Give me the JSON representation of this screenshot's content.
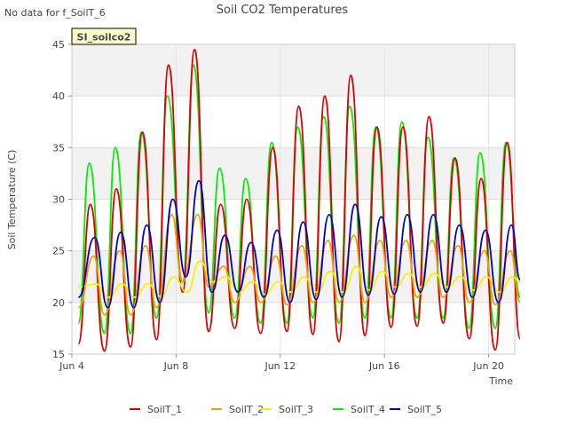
{
  "no_data_note": "No data for f_SoilT_6",
  "badge": {
    "label": "SI_soilco2",
    "bg": "#ffffcc",
    "fg": "#8b0000"
  },
  "chart_data": {
    "type": "line",
    "title": "Soil CO2 Temperatures",
    "xlabel": "Time",
    "ylabel": "Soil Temperature (C)",
    "xlim": [
      "2024-06-04",
      "2024-06-21"
    ],
    "ylim": [
      15,
      45
    ],
    "yticks": [
      15,
      20,
      25,
      30,
      35,
      40,
      45
    ],
    "xticks": [
      "2024-06-04",
      "2024-06-08",
      "2024-06-12",
      "2024-06-16",
      "2024-06-20"
    ],
    "xtick_labels": [
      "Jun 4",
      "Jun 8",
      "Jun 12",
      "Jun 16",
      "Jun 20"
    ],
    "grid": true,
    "banding": "alternating grey horizontal bands",
    "legend_position": "bottom",
    "series": [
      {
        "name": "SoilT_1",
        "color": "#dd0000",
        "x": [
          "2024-06-04 06:00",
          "2024-06-04 17:00",
          "2024-06-05 06:00",
          "2024-06-05 17:00",
          "2024-06-06 06:00",
          "2024-06-06 17:00",
          "2024-06-07 06:00",
          "2024-06-07 17:00",
          "2024-06-08 06:00",
          "2024-06-08 17:00",
          "2024-06-09 06:00",
          "2024-06-09 17:00",
          "2024-06-10 06:00",
          "2024-06-10 17:00",
          "2024-06-11 06:00",
          "2024-06-11 17:00",
          "2024-06-12 06:00",
          "2024-06-12 17:00",
          "2024-06-13 06:00",
          "2024-06-13 17:00",
          "2024-06-14 06:00",
          "2024-06-14 17:00",
          "2024-06-15 06:00",
          "2024-06-15 17:00",
          "2024-06-16 06:00",
          "2024-06-16 17:00",
          "2024-06-17 06:00",
          "2024-06-17 17:00",
          "2024-06-18 06:00",
          "2024-06-18 17:00",
          "2024-06-19 06:00",
          "2024-06-19 17:00",
          "2024-06-20 06:00",
          "2024-06-20 17:00",
          "2024-06-21 05:00"
        ],
        "y": [
          16.0,
          29.5,
          15.3,
          31.0,
          15.7,
          36.5,
          16.4,
          43.0,
          21.0,
          44.5,
          17.2,
          29.5,
          17.5,
          30.0,
          17.0,
          35.0,
          17.2,
          39.0,
          16.9,
          40.0,
          16.2,
          42.0,
          16.8,
          37.0,
          17.6,
          37.0,
          17.7,
          38.0,
          18.0,
          34.0,
          16.5,
          32.0,
          15.4,
          35.5,
          16.5
        ]
      },
      {
        "name": "SoilT_2",
        "color": "#f0a000",
        "x": [
          "2024-06-04 06:00",
          "2024-06-04 20:00",
          "2024-06-05 06:00",
          "2024-06-05 20:00",
          "2024-06-06 06:00",
          "2024-06-06 20:00",
          "2024-06-07 06:00",
          "2024-06-07 20:00",
          "2024-06-08 06:00",
          "2024-06-08 20:00",
          "2024-06-09 06:00",
          "2024-06-09 20:00",
          "2024-06-10 06:00",
          "2024-06-10 20:00",
          "2024-06-11 06:00",
          "2024-06-11 20:00",
          "2024-06-12 06:00",
          "2024-06-12 20:00",
          "2024-06-13 06:00",
          "2024-06-13 20:00",
          "2024-06-14 06:00",
          "2024-06-14 20:00",
          "2024-06-15 06:00",
          "2024-06-15 20:00",
          "2024-06-16 06:00",
          "2024-06-16 20:00",
          "2024-06-17 06:00",
          "2024-06-17 20:00",
          "2024-06-18 06:00",
          "2024-06-18 20:00",
          "2024-06-19 06:00",
          "2024-06-19 20:00",
          "2024-06-20 06:00",
          "2024-06-20 20:00",
          "2024-06-21 05:00"
        ],
        "y": [
          19.5,
          24.5,
          18.8,
          25.0,
          18.8,
          25.5,
          19.5,
          28.5,
          22.0,
          28.5,
          21.5,
          23.5,
          20.0,
          23.5,
          20.0,
          24.5,
          19.8,
          25.5,
          20.0,
          26.0,
          20.0,
          26.5,
          20.0,
          26.0,
          20.5,
          26.0,
          20.5,
          26.0,
          20.5,
          25.5,
          20.0,
          25.0,
          19.8,
          25.0,
          20.0
        ]
      },
      {
        "name": "SoilT_3",
        "color": "#ffee00",
        "x": [
          "2024-06-04 06:00",
          "2024-06-04 22:00",
          "2024-06-05 10:00",
          "2024-06-05 22:00",
          "2024-06-06 10:00",
          "2024-06-06 22:00",
          "2024-06-07 10:00",
          "2024-06-07 22:00",
          "2024-06-08 10:00",
          "2024-06-08 22:00",
          "2024-06-09 10:00",
          "2024-06-09 22:00",
          "2024-06-10 10:00",
          "2024-06-10 22:00",
          "2024-06-11 10:00",
          "2024-06-11 22:00",
          "2024-06-12 10:00",
          "2024-06-12 22:00",
          "2024-06-13 10:00",
          "2024-06-13 22:00",
          "2024-06-14 10:00",
          "2024-06-14 22:00",
          "2024-06-15 10:00",
          "2024-06-15 22:00",
          "2024-06-16 10:00",
          "2024-06-16 22:00",
          "2024-06-17 10:00",
          "2024-06-17 22:00",
          "2024-06-18 10:00",
          "2024-06-18 22:00",
          "2024-06-19 10:00",
          "2024-06-19 22:00",
          "2024-06-20 10:00",
          "2024-06-20 22:00",
          "2024-06-21 05:00"
        ],
        "y": [
          21.5,
          21.8,
          20.5,
          21.8,
          20.5,
          21.8,
          20.6,
          22.5,
          21.0,
          24.0,
          22.0,
          22.5,
          21.0,
          22.0,
          20.8,
          22.0,
          21.0,
          22.5,
          21.0,
          23.0,
          21.0,
          23.5,
          21.2,
          23.0,
          21.5,
          22.8,
          21.5,
          22.8,
          21.5,
          22.5,
          21.2,
          22.5,
          21.0,
          22.5,
          22.0
        ]
      },
      {
        "name": "SoilT_4",
        "color": "#00ee00",
        "x": [
          "2024-06-04 06:00",
          "2024-06-04 16:00",
          "2024-06-05 06:00",
          "2024-06-05 16:00",
          "2024-06-06 06:00",
          "2024-06-06 16:00",
          "2024-06-07 06:00",
          "2024-06-07 16:00",
          "2024-06-08 06:00",
          "2024-06-08 16:00",
          "2024-06-09 06:00",
          "2024-06-09 16:00",
          "2024-06-10 06:00",
          "2024-06-10 16:00",
          "2024-06-11 06:00",
          "2024-06-11 16:00",
          "2024-06-12 06:00",
          "2024-06-12 16:00",
          "2024-06-13 06:00",
          "2024-06-13 16:00",
          "2024-06-14 06:00",
          "2024-06-14 16:00",
          "2024-06-15 06:00",
          "2024-06-15 16:00",
          "2024-06-16 06:00",
          "2024-06-16 16:00",
          "2024-06-17 06:00",
          "2024-06-17 16:00",
          "2024-06-18 06:00",
          "2024-06-18 16:00",
          "2024-06-19 06:00",
          "2024-06-19 16:00",
          "2024-06-20 06:00",
          "2024-06-20 16:00",
          "2024-06-21 05:00"
        ],
        "y": [
          18.0,
          33.5,
          17.0,
          35.0,
          17.0,
          36.5,
          18.5,
          40.0,
          22.0,
          43.0,
          19.0,
          33.0,
          18.5,
          32.0,
          18.0,
          35.5,
          18.0,
          37.0,
          18.5,
          38.0,
          18.0,
          39.0,
          18.5,
          37.0,
          18.5,
          37.5,
          18.5,
          36.0,
          18.5,
          34.0,
          17.5,
          34.5,
          17.5,
          35.5,
          20.5
        ]
      },
      {
        "name": "SoilT_5",
        "color": "#0000cc",
        "x": [
          "2024-06-04 06:00",
          "2024-06-04 21:00",
          "2024-06-05 09:00",
          "2024-06-05 21:00",
          "2024-06-06 09:00",
          "2024-06-06 21:00",
          "2024-06-07 09:00",
          "2024-06-07 21:00",
          "2024-06-08 09:00",
          "2024-06-08 21:00",
          "2024-06-09 09:00",
          "2024-06-09 21:00",
          "2024-06-10 09:00",
          "2024-06-10 21:00",
          "2024-06-11 09:00",
          "2024-06-11 21:00",
          "2024-06-12 09:00",
          "2024-06-12 21:00",
          "2024-06-13 09:00",
          "2024-06-13 21:00",
          "2024-06-14 09:00",
          "2024-06-14 21:00",
          "2024-06-15 09:00",
          "2024-06-15 21:00",
          "2024-06-16 09:00",
          "2024-06-16 21:00",
          "2024-06-17 09:00",
          "2024-06-17 21:00",
          "2024-06-18 09:00",
          "2024-06-18 21:00",
          "2024-06-19 09:00",
          "2024-06-19 21:00",
          "2024-06-20 09:00",
          "2024-06-20 21:00",
          "2024-06-21 05:00"
        ],
        "y": [
          20.5,
          26.3,
          19.5,
          26.8,
          19.5,
          27.5,
          20.0,
          30.0,
          22.5,
          31.8,
          21.0,
          26.5,
          21.0,
          25.8,
          20.5,
          27.0,
          20.0,
          27.8,
          20.3,
          28.5,
          20.5,
          29.5,
          20.7,
          28.3,
          20.8,
          28.5,
          21.0,
          28.5,
          21.0,
          27.5,
          20.5,
          27.0,
          20.0,
          27.5,
          22.2
        ]
      }
    ]
  }
}
